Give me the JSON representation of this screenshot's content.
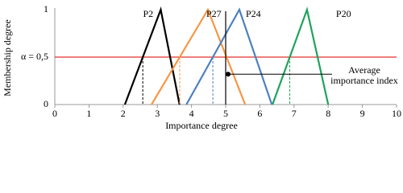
{
  "chart_data": {
    "type": "line",
    "x_label": "Importance degree",
    "y_label": "Membership degree",
    "xlim": [
      0,
      10
    ],
    "xticks": [
      0,
      1,
      2,
      3,
      4,
      5,
      6,
      7,
      8,
      9,
      10
    ],
    "ylim": [
      0,
      1
    ],
    "yticks": [
      0,
      {
        "value": 0.5,
        "label": "α = 0,5"
      },
      1
    ],
    "threshold_color": "#e0302a",
    "series": [
      {
        "name": "P2",
        "color": "#000000",
        "x": [
          2.05,
          3.1,
          3.65
        ],
        "values": [
          0,
          1,
          0
        ]
      },
      {
        "name": "P27",
        "color": "#f79646",
        "x": [
          2.83,
          4.48,
          5.57
        ],
        "values": [
          0,
          1,
          0
        ]
      },
      {
        "name": "P24",
        "color": "#4f81bd",
        "x": [
          3.85,
          5.4,
          6.35
        ],
        "values": [
          0,
          1,
          0
        ]
      },
      {
        "name": "P20",
        "color": "#1ea35a",
        "x": [
          6.37,
          7.38,
          8.0
        ],
        "values": [
          0,
          1,
          0
        ]
      }
    ],
    "average": {
      "x": 5,
      "y": 0.32,
      "annotation": [
        "Average",
        "importance index"
      ]
    }
  }
}
